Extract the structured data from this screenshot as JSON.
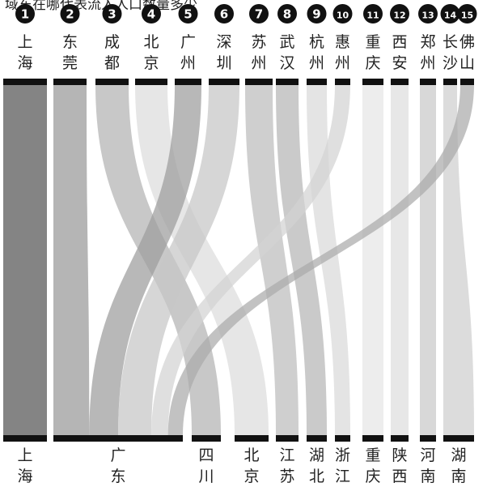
{
  "title": "域东在哪代表流入人口数量多少",
  "chart_data": {
    "type": "sankey",
    "title": "域东在哪代表流入人口数量多少",
    "sources": [
      {
        "rank": "1",
        "name": "上海",
        "target": "上海"
      },
      {
        "rank": "2",
        "name": "东莞",
        "target": "广东"
      },
      {
        "rank": "3",
        "name": "成都",
        "target": "四川"
      },
      {
        "rank": "4",
        "name": "北京",
        "target": "北京"
      },
      {
        "rank": "5",
        "name": "广州",
        "target": "广东"
      },
      {
        "rank": "6",
        "name": "深圳",
        "target": "广东"
      },
      {
        "rank": "7",
        "name": "苏州",
        "target": "江苏"
      },
      {
        "rank": "8",
        "name": "武汉",
        "target": "湖北"
      },
      {
        "rank": "9",
        "name": "杭州",
        "target": "浙江"
      },
      {
        "rank": "10",
        "name": "惠州",
        "target": "广东"
      },
      {
        "rank": "11",
        "name": "重庆",
        "target": "重庆"
      },
      {
        "rank": "12",
        "name": "西安",
        "target": "陕西"
      },
      {
        "rank": "13",
        "name": "郑州",
        "target": "河南"
      },
      {
        "rank": "14",
        "name": "长沙",
        "target": "湖南"
      },
      {
        "rank": "15",
        "name": "佛山",
        "target": "广东"
      }
    ],
    "targets": [
      "上海",
      "广东",
      "四川",
      "北京",
      "江苏",
      "湖北",
      "浙江",
      "重庆",
      "陕西",
      "河南",
      "湖南"
    ],
    "colors": {
      "上海": "#555555",
      "东莞": "#999999",
      "成都": "#b3b3b3",
      "北京": "#dddddd",
      "广州": "#9c9c9c",
      "深圳": "#c6c6c6",
      "苏州": "#bcbcbc",
      "武汉": "#b5b5b5",
      "杭州": "#d9d9d9",
      "惠州": "#d2d2d2",
      "重庆": "#e6e6e6",
      "西安": "#dedede",
      "郑州": "#c9c9c9",
      "长沙": "#cfcfcf",
      "佛山": "#aaaaaa"
    }
  }
}
